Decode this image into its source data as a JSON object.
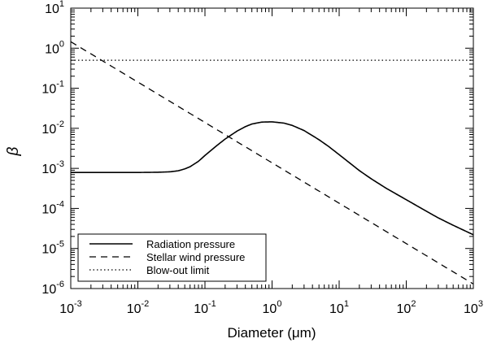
{
  "chart_data": {
    "type": "line",
    "title": "",
    "xlabel": "Diameter (μm)",
    "ylabel": "β",
    "xscale": "log",
    "yscale": "log",
    "xlim": [
      0.001,
      1000
    ],
    "ylim": [
      1e-06,
      10
    ],
    "x_ticks": [
      {
        "base": "10",
        "exp": "-3",
        "value": 0.001
      },
      {
        "base": "10",
        "exp": "-2",
        "value": 0.01
      },
      {
        "base": "10",
        "exp": "-1",
        "value": 0.1
      },
      {
        "base": "10",
        "exp": "0",
        "value": 1
      },
      {
        "base": "10",
        "exp": "1",
        "value": 10
      },
      {
        "base": "10",
        "exp": "2",
        "value": 100
      },
      {
        "base": "10",
        "exp": "3",
        "value": 1000
      }
    ],
    "y_ticks": [
      {
        "base": "10",
        "exp": "-6",
        "value": 1e-06
      },
      {
        "base": "10",
        "exp": "-5",
        "value": 1e-05
      },
      {
        "base": "10",
        "exp": "-4",
        "value": 0.0001
      },
      {
        "base": "10",
        "exp": "-3",
        "value": 0.001
      },
      {
        "base": "10",
        "exp": "-2",
        "value": 0.01
      },
      {
        "base": "10",
        "exp": "-1",
        "value": 0.1
      },
      {
        "base": "10",
        "exp": "0",
        "value": 1
      },
      {
        "base": "10",
        "exp": "1",
        "value": 10
      }
    ],
    "grid": false,
    "legend_position": "bottom-left",
    "series": [
      {
        "name": "Radiation pressure",
        "style": "solid",
        "color": "#000000",
        "x": [
          0.001,
          0.003,
          0.01,
          0.02,
          0.03,
          0.04,
          0.05,
          0.06,
          0.08,
          0.1,
          0.15,
          0.2,
          0.3,
          0.4,
          0.5,
          0.7,
          1.0,
          1.5,
          2,
          3,
          5,
          7,
          10,
          20,
          30,
          50,
          100,
          200,
          300,
          500,
          1000
        ],
        "y": [
          0.00079,
          0.00079,
          0.00079,
          0.0008,
          0.00082,
          0.00087,
          0.00097,
          0.0011,
          0.0015,
          0.0021,
          0.0037,
          0.0054,
          0.0085,
          0.011,
          0.0128,
          0.0143,
          0.0145,
          0.0135,
          0.0118,
          0.0088,
          0.0052,
          0.0035,
          0.0022,
          0.00088,
          0.00055,
          0.00032,
          0.000165,
          8.5e-05,
          5.8e-05,
          3.8e-05,
          2.2e-05
        ]
      },
      {
        "name": "Stellar wind pressure",
        "style": "dashed",
        "color": "#000000",
        "x": [
          0.001,
          1000
        ],
        "y": [
          1.45,
          1.3e-06
        ]
      },
      {
        "name": "Blow-out limit",
        "style": "dotted",
        "color": "#000000",
        "x": [
          0.001,
          1000
        ],
        "y": [
          0.5,
          0.5
        ]
      }
    ]
  }
}
